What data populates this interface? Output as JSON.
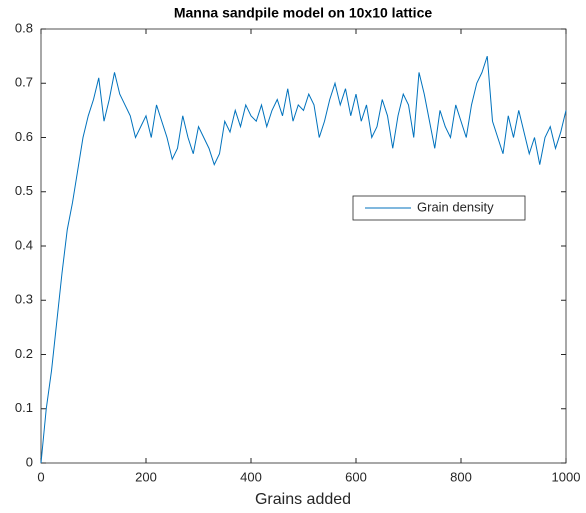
{
  "chart_data": {
    "type": "line",
    "title": "Manna sandpile model on 10x10 lattice",
    "xlabel": "Grains added",
    "x": [
      0,
      10,
      20,
      30,
      40,
      50,
      60,
      70,
      80,
      90,
      100,
      110,
      120,
      130,
      140,
      150,
      160,
      170,
      180,
      190,
      200,
      210,
      220,
      230,
      240,
      250,
      260,
      270,
      280,
      290,
      300,
      310,
      320,
      330,
      340,
      350,
      360,
      370,
      380,
      390,
      400,
      410,
      420,
      430,
      440,
      450,
      460,
      470,
      480,
      490,
      500,
      510,
      520,
      530,
      540,
      550,
      560,
      570,
      580,
      590,
      600,
      610,
      620,
      630,
      640,
      650,
      660,
      670,
      680,
      690,
      700,
      710,
      720,
      730,
      740,
      750,
      760,
      770,
      780,
      790,
      800,
      810,
      820,
      830,
      840,
      850,
      860,
      870,
      880,
      890,
      900,
      910,
      920,
      930,
      940,
      950,
      960,
      970,
      980,
      990,
      1000
    ],
    "series": [
      {
        "name": "Grain density",
        "color": "#0072bd",
        "values": [
          0,
          0.1,
          0.17,
          0.26,
          0.35,
          0.43,
          0.48,
          0.54,
          0.6,
          0.64,
          0.67,
          0.71,
          0.63,
          0.67,
          0.72,
          0.68,
          0.66,
          0.64,
          0.6,
          0.62,
          0.64,
          0.6,
          0.66,
          0.63,
          0.6,
          0.56,
          0.58,
          0.64,
          0.6,
          0.57,
          0.62,
          0.6,
          0.58,
          0.55,
          0.57,
          0.63,
          0.61,
          0.65,
          0.62,
          0.66,
          0.64,
          0.63,
          0.66,
          0.62,
          0.65,
          0.67,
          0.64,
          0.69,
          0.63,
          0.66,
          0.65,
          0.68,
          0.66,
          0.6,
          0.63,
          0.67,
          0.7,
          0.66,
          0.69,
          0.64,
          0.68,
          0.63,
          0.66,
          0.6,
          0.62,
          0.67,
          0.64,
          0.58,
          0.64,
          0.68,
          0.66,
          0.6,
          0.72,
          0.68,
          0.63,
          0.58,
          0.65,
          0.62,
          0.6,
          0.66,
          0.63,
          0.6,
          0.66,
          0.7,
          0.72,
          0.75,
          0.63,
          0.6,
          0.57,
          0.64,
          0.6,
          0.65,
          0.61,
          0.57,
          0.6,
          0.55,
          0.6,
          0.62,
          0.58,
          0.61,
          0.65
        ]
      }
    ],
    "xlim": [
      0,
      1000
    ],
    "xticks": [
      0,
      200,
      400,
      600,
      800,
      1000
    ],
    "ylim": [
      0,
      0.8
    ],
    "yticks": [
      0,
      0.1,
      0.2,
      0.3,
      0.4,
      0.5,
      0.6,
      0.7,
      0.8
    ],
    "legend_location": "east"
  }
}
